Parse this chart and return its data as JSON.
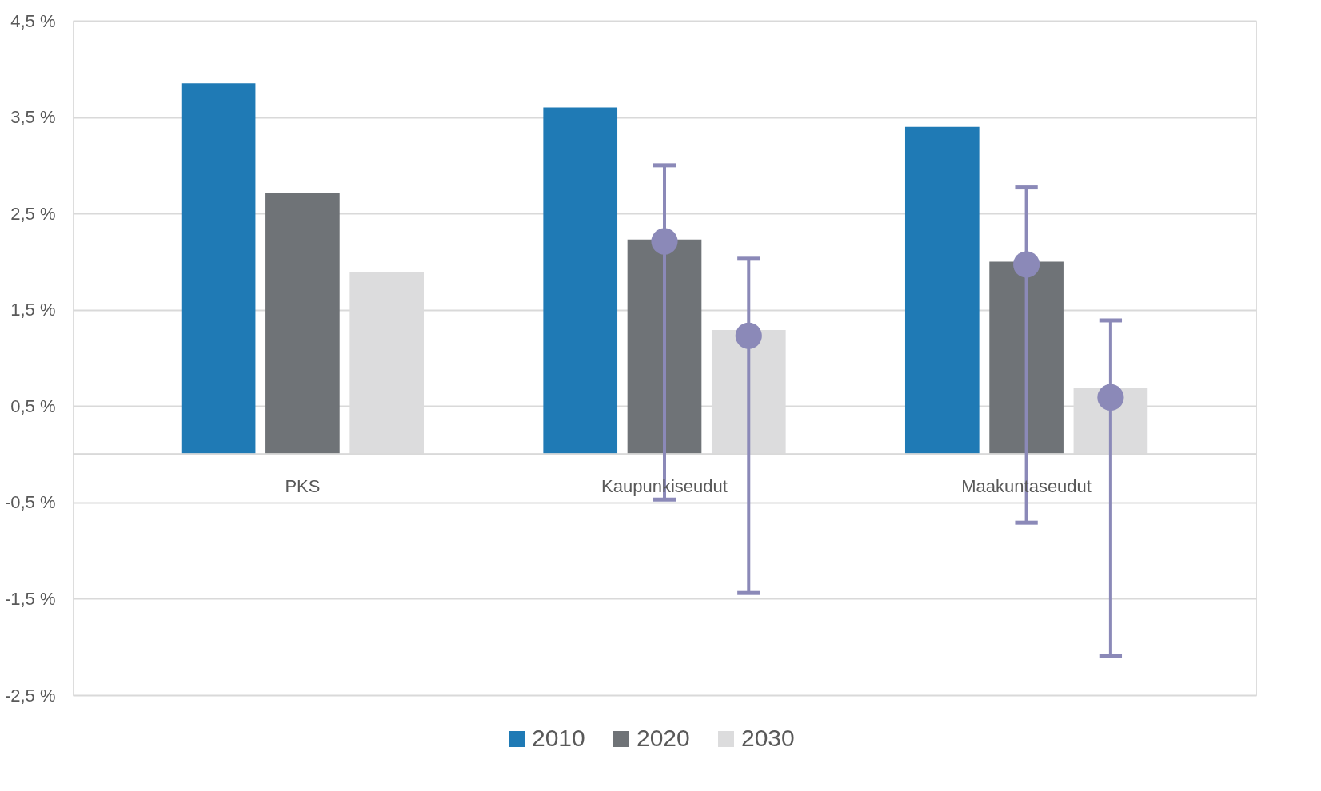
{
  "chart_data": {
    "type": "bar",
    "categories": [
      "PKS",
      "Kaupunkiseudut",
      "Maakuntaseudut"
    ],
    "series": [
      {
        "name": "2010",
        "color": "#1f7ab5",
        "values": [
          3.85,
          3.6,
          3.4
        ]
      },
      {
        "name": "2020",
        "color": "#6f7377",
        "values": [
          2.71,
          2.23,
          2.0
        ]
      },
      {
        "name": "2030",
        "color": "#dcdcdd",
        "values": [
          1.89,
          1.29,
          0.69
        ]
      },
      {
        "type": "scatter",
        "color": "#8b89b8",
        "values": [
          null,
          2.21,
          1.97
        ],
        "errors": [
          null,
          [
            -0.47,
            3.0
          ],
          [
            -0.71,
            2.77
          ]
        ]
      },
      {
        "type": "scatter",
        "color": "#8b89b8",
        "values": [
          null,
          1.23,
          0.59
        ],
        "errors": [
          null,
          [
            -1.44,
            2.03
          ],
          [
            -2.09,
            1.39
          ]
        ]
      }
    ],
    "ylim": [
      -2.5,
      4.5
    ],
    "yticks": [
      {
        "value": -2.5,
        "label": "-2,5 %"
      },
      {
        "value": -1.5,
        "label": "-1,5 %"
      },
      {
        "value": -0.5,
        "label": "-0,5 %"
      },
      {
        "value": 0.5,
        "label": "0,5 %"
      },
      {
        "value": 1.5,
        "label": "1,5 %"
      },
      {
        "value": 2.5,
        "label": "2,5 %"
      },
      {
        "value": 3.5,
        "label": "3,5 %"
      },
      {
        "value": 4.5,
        "label": "4,5 %"
      }
    ],
    "grid": "y",
    "legend": "bottom",
    "marker": "circle"
  }
}
